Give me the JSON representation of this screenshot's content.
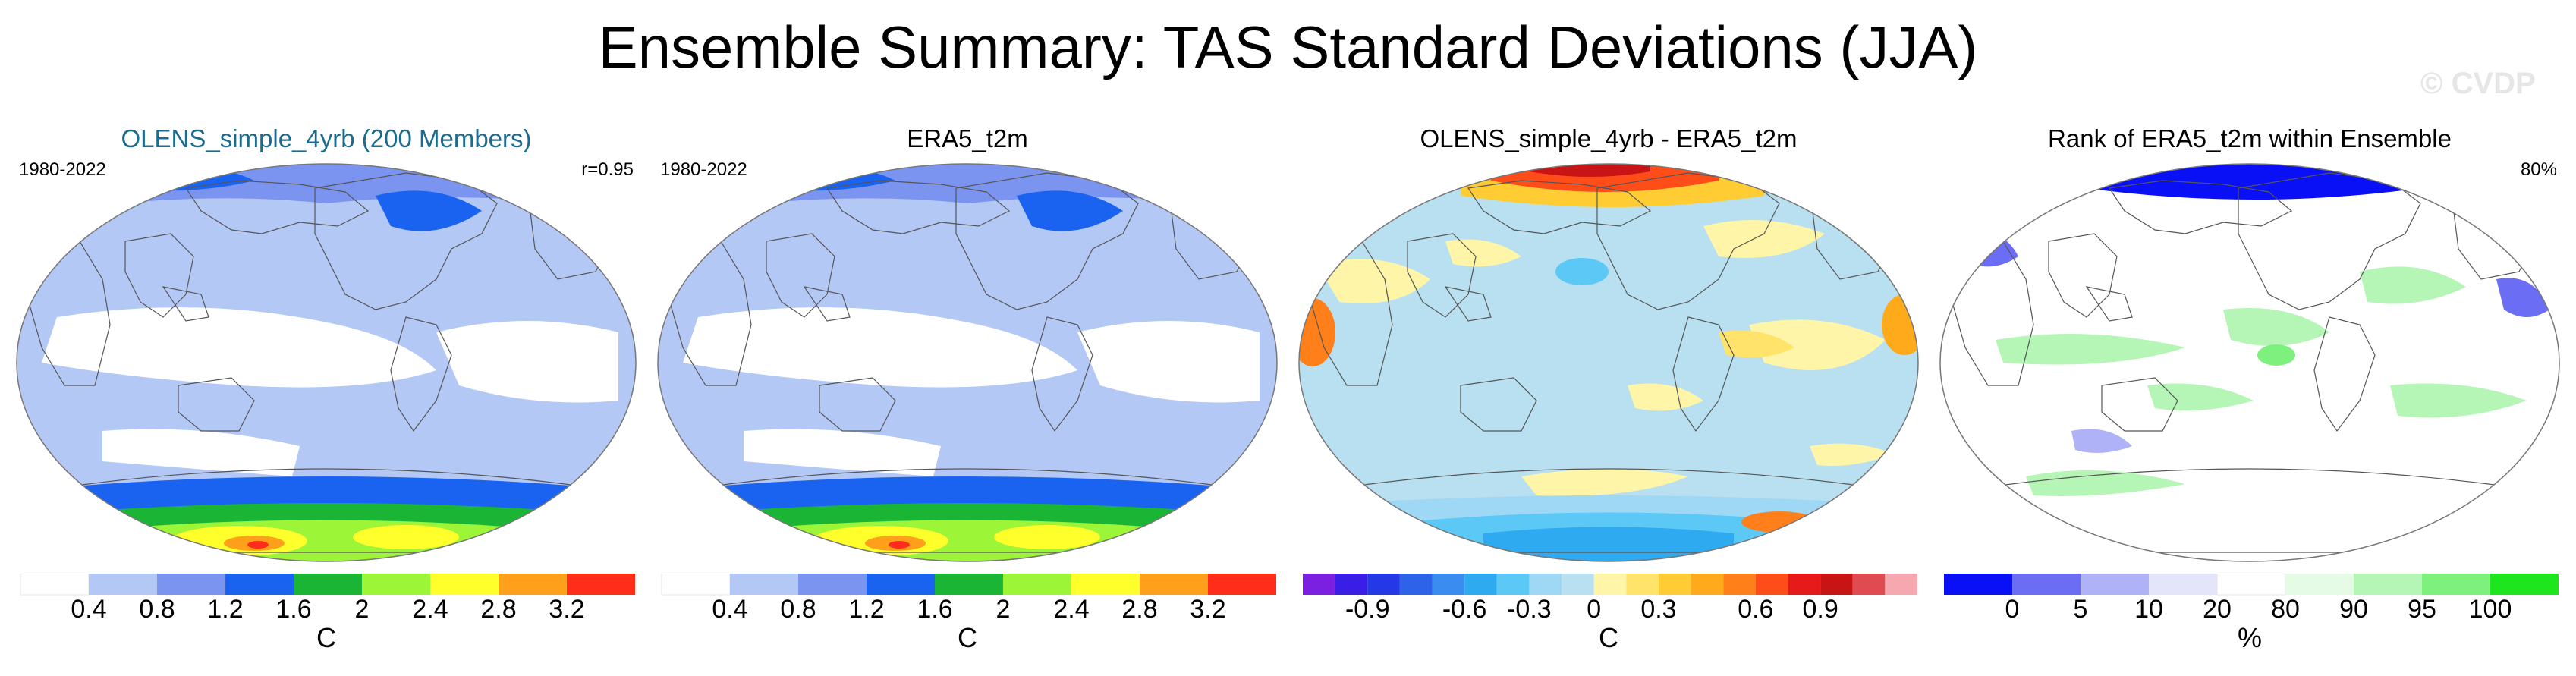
{
  "title": "Ensemble Summary: TAS Standard Deviations (JJA)",
  "watermark": "© CVDP",
  "colors": {
    "ocean_outline": "#666666",
    "title_blue": "#1b6b8e"
  },
  "panels": [
    {
      "title": "OLENS_simple_4yrb (200 Members)",
      "left_label": "1980-2022",
      "right_label": "r=0.95",
      "map_style": "std",
      "colorbar": {
        "colors": [
          "#ffffff",
          "#b4c8f5",
          "#7b94f0",
          "#1a62f0",
          "#1ab535",
          "#9cf536",
          "#ffff2b",
          "#ffa01a",
          "#ff2d1a"
        ],
        "ticks": [
          "0.4",
          "0.8",
          "1.2",
          "1.6",
          "2",
          "2.4",
          "2.8",
          "3.2"
        ],
        "unit": "C"
      }
    },
    {
      "title": "ERA5_t2m",
      "left_label": "1980-2022",
      "right_label": "",
      "map_style": "std",
      "colorbar": {
        "colors": [
          "#ffffff",
          "#b4c8f5",
          "#7b94f0",
          "#1a62f0",
          "#1ab535",
          "#9cf536",
          "#ffff2b",
          "#ffa01a",
          "#ff2d1a"
        ],
        "ticks": [
          "0.4",
          "0.8",
          "1.2",
          "1.6",
          "2",
          "2.4",
          "2.8",
          "3.2"
        ],
        "unit": "C"
      }
    },
    {
      "title": "OLENS_simple_4yrb - ERA5_t2m",
      "left_label": "",
      "right_label": "",
      "map_style": "diff",
      "colorbar": {
        "colors": [
          "#7b1fe0",
          "#3a1ee8",
          "#2438e8",
          "#2e62e8",
          "#3a8cf0",
          "#2eaaf0",
          "#5cc8f5",
          "#9ed8f5",
          "#b8e0f0",
          "#fff5a8",
          "#ffe36a",
          "#ffcc33",
          "#ffaa1a",
          "#ff7f1a",
          "#ff4d1a",
          "#e61a1a",
          "#c81414",
          "#e04a50",
          "#f5a8b0"
        ],
        "ticks": [
          "-0.9",
          "-0.6",
          "-0.3",
          "0",
          "0.3",
          "0.6",
          "0.9"
        ],
        "unit": "C"
      }
    },
    {
      "title": "Rank of ERA5_t2m within Ensemble",
      "left_label": "",
      "right_label": "80%",
      "map_style": "rank",
      "colorbar": {
        "colors": [
          "#0a10f5",
          "#6b6ef5",
          "#b0b2f8",
          "#e4e4fb",
          "#ffffff",
          "#e6fbe6",
          "#b5f5b5",
          "#7ef07e",
          "#1ee61e"
        ],
        "ticks": [
          "0",
          "5",
          "10",
          "20",
          "80",
          "90",
          "95",
          "100"
        ],
        "unit": "%"
      }
    }
  ]
}
